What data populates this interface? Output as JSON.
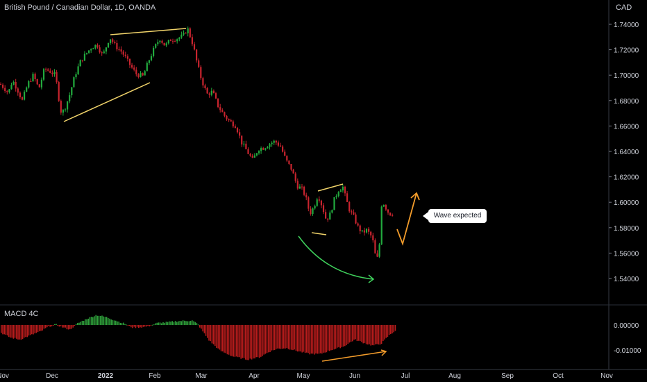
{
  "header": {
    "title": "British Pound / Canadian Dollar, 1D, OANDA",
    "currency": "CAD"
  },
  "indicator": {
    "label": "MACD 4C"
  },
  "annotation": {
    "callout": "Wave expected"
  },
  "colors": {
    "up": "#22ab3e",
    "down": "#c8242e",
    "macd_up": "#2e9e3a",
    "macd_down": "#b71c1c",
    "trend_yellow": "#f0d36a",
    "curve_green": "#3fd15c",
    "arrow_orange": "#f39c2b"
  },
  "chart_data": [
    {
      "type": "candlestick",
      "title": "British Pound / Canadian Dollar, 1D, OANDA",
      "x_ticks": [
        "Nov",
        "Dec",
        "2022",
        "Feb",
        "Mar",
        "Apr",
        "May",
        "Jun",
        "Jul",
        "Aug",
        "Sep",
        "Oct",
        "Nov"
      ],
      "y_ticks": [
        "1.74000",
        "1.72000",
        "1.70000",
        "1.68000",
        "1.66000",
        "1.64000",
        "1.62000",
        "1.60000",
        "1.58000",
        "1.56000",
        "1.54000"
      ],
      "ylim": [
        1.532,
        1.754
      ],
      "close_path": [
        [
          0,
          1.693
        ],
        [
          6,
          1.69
        ],
        [
          12,
          1.686
        ],
        [
          18,
          1.696
        ],
        [
          24,
          1.69
        ],
        [
          32,
          1.68
        ],
        [
          40,
          1.693
        ],
        [
          48,
          1.7
        ],
        [
          56,
          1.689
        ],
        [
          64,
          1.705
        ],
        [
          72,
          1.703
        ],
        [
          80,
          1.7
        ],
        [
          84,
          1.684
        ],
        [
          88,
          1.671
        ],
        [
          92,
          1.672
        ],
        [
          100,
          1.684
        ],
        [
          108,
          1.7
        ],
        [
          116,
          1.711
        ],
        [
          124,
          1.717
        ],
        [
          132,
          1.722
        ],
        [
          140,
          1.724
        ],
        [
          148,
          1.715
        ],
        [
          158,
          1.73
        ],
        [
          166,
          1.723
        ],
        [
          176,
          1.718
        ],
        [
          186,
          1.709
        ],
        [
          196,
          1.701
        ],
        [
          206,
          1.699
        ],
        [
          214,
          1.711
        ],
        [
          222,
          1.721
        ],
        [
          230,
          1.729
        ],
        [
          238,
          1.723
        ],
        [
          246,
          1.728
        ],
        [
          256,
          1.729
        ],
        [
          264,
          1.731
        ],
        [
          270,
          1.737
        ],
        [
          278,
          1.724
        ],
        [
          284,
          1.709
        ],
        [
          290,
          1.697
        ],
        [
          298,
          1.685
        ],
        [
          306,
          1.687
        ],
        [
          314,
          1.676
        ],
        [
          322,
          1.669
        ],
        [
          330,
          1.664
        ],
        [
          340,
          1.66
        ],
        [
          348,
          1.647
        ],
        [
          356,
          1.64
        ],
        [
          364,
          1.633
        ],
        [
          372,
          1.642
        ],
        [
          380,
          1.643
        ],
        [
          388,
          1.646
        ],
        [
          396,
          1.648
        ],
        [
          404,
          1.644
        ],
        [
          412,
          1.633
        ],
        [
          420,
          1.626
        ],
        [
          428,
          1.613
        ],
        [
          436,
          1.61
        ],
        [
          442,
          1.601
        ],
        [
          446,
          1.591
        ],
        [
          452,
          1.596
        ],
        [
          458,
          1.606
        ],
        [
          464,
          1.597
        ],
        [
          470,
          1.586
        ],
        [
          476,
          1.591
        ],
        [
          482,
          1.603
        ],
        [
          488,
          1.61
        ],
        [
          494,
          1.612
        ],
        [
          498,
          1.603
        ],
        [
          504,
          1.593
        ],
        [
          510,
          1.588
        ],
        [
          516,
          1.58
        ],
        [
          522,
          1.576
        ],
        [
          528,
          1.578
        ],
        [
          534,
          1.574
        ],
        [
          538,
          1.568
        ],
        [
          542,
          1.553
        ],
        [
          546,
          1.561
        ],
        [
          550,
          1.601
        ],
        [
          554,
          1.598
        ],
        [
          558,
          1.593
        ],
        [
          564,
          1.59
        ],
        [
          568,
          1.594
        ]
      ]
    },
    {
      "type": "bar",
      "title": "MACD 4C",
      "y_ticks": [
        "0.00000",
        "-0.01000"
      ],
      "ylim": [
        -0.0155,
        0.0057
      ],
      "histogram_path": [
        [
          0,
          -0.003
        ],
        [
          14,
          -0.005
        ],
        [
          28,
          -0.0058
        ],
        [
          44,
          -0.004
        ],
        [
          58,
          -0.0025
        ],
        [
          70,
          -0.0005
        ],
        [
          80,
          0.0002
        ],
        [
          90,
          -0.001
        ],
        [
          100,
          -0.0018
        ],
        [
          110,
          0.0005
        ],
        [
          124,
          0.0025
        ],
        [
          138,
          0.004
        ],
        [
          152,
          0.0032
        ],
        [
          166,
          0.0018
        ],
        [
          180,
          0.0004
        ],
        [
          190,
          -0.001
        ],
        [
          206,
          -0.0008
        ],
        [
          216,
          -0.0002
        ],
        [
          226,
          0.0008
        ],
        [
          240,
          0.0011
        ],
        [
          256,
          0.0016
        ],
        [
          276,
          0.0018
        ],
        [
          284,
          0.0004
        ],
        [
          290,
          -0.002
        ],
        [
          300,
          -0.006
        ],
        [
          316,
          -0.0102
        ],
        [
          334,
          -0.0125
        ],
        [
          356,
          -0.0138
        ],
        [
          374,
          -0.0128
        ],
        [
          386,
          -0.0108
        ],
        [
          398,
          -0.0095
        ],
        [
          412,
          -0.0092
        ],
        [
          428,
          -0.0104
        ],
        [
          444,
          -0.0115
        ],
        [
          460,
          -0.0116
        ],
        [
          476,
          -0.01
        ],
        [
          494,
          -0.0086
        ],
        [
          510,
          -0.0058
        ],
        [
          524,
          -0.0072
        ],
        [
          536,
          -0.0082
        ],
        [
          548,
          -0.0075
        ],
        [
          560,
          -0.004
        ],
        [
          569,
          -0.0022
        ]
      ]
    }
  ]
}
